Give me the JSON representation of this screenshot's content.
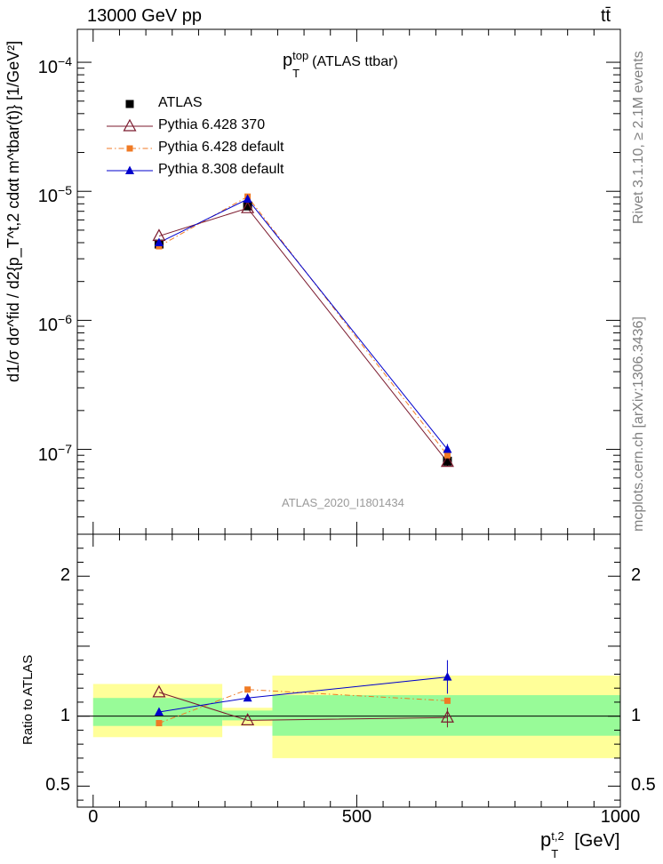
{
  "header": {
    "left": "13000 GeV pp",
    "right": "tt̄"
  },
  "side_labels": {
    "upper": "Rivet 3.1.10, ≥ 2.1M events",
    "lower": "mcplots.cern.ch [arXiv:1306.3436]"
  },
  "chart_data": [
    {
      "type": "scatter",
      "panel": "main",
      "title": "p_T^top (ATLAS ttbar)",
      "title_parts": {
        "p": "p",
        "sub": "T",
        "sup": "top",
        "rest": "(ATLAS ttbar)"
      },
      "watermark": "ATLAS_2020_I1801434",
      "ylabel": "d1/σ dσ^fid / d2{p_T^t,2 cdαt m^tbar(t)} [1/GeV²]",
      "yscale": "log",
      "ylim": [
        2.2e-08,
        0.00018
      ],
      "xlim": [
        -30,
        1000
      ],
      "y_ticks": [
        {
          "value": 1e-07,
          "label": "10",
          "exp": "−7"
        },
        {
          "value": 1e-06,
          "label": "10",
          "exp": "−6"
        },
        {
          "value": 1e-05,
          "label": "10",
          "exp": "−5"
        },
        {
          "value": 0.0001,
          "label": "10",
          "exp": "−4"
        }
      ],
      "legend_position": "top-left",
      "x": [
        125,
        293,
        672
      ],
      "series": [
        {
          "name": "ATLAS",
          "marker": "square",
          "color": "#000000",
          "values": [
            3.9e-06,
            7.7e-06,
            8.1e-08
          ],
          "errors": [
            2.5e-07,
            5e-07,
            7e-09
          ],
          "x_errors": [
            125,
            45,
            330
          ]
        },
        {
          "name": "Pythia 6.428 370",
          "marker": "open-triangle",
          "color": "#7b1a2e",
          "values": [
            4.5e-06,
            7.4e-06,
            8e-08
          ]
        },
        {
          "name": "Pythia 6.428 default",
          "marker": "small-square",
          "color": "#f07a24",
          "dash": "dashdot",
          "values": [
            3.75e-06,
            9.1e-06,
            9e-08
          ]
        },
        {
          "name": "Pythia 8.308 default",
          "marker": "filled-triangle",
          "color": "#0000cc",
          "values": [
            4e-06,
            8.7e-06,
            1e-07
          ],
          "errors": [
            0,
            0,
            1e-08
          ]
        }
      ]
    },
    {
      "type": "scatter",
      "panel": "ratio",
      "ylabel": "Ratio to ATLAS",
      "xlabel": "p_T^t,2 [GeV]",
      "xlabel_parts": {
        "p": "p",
        "sub": "T",
        "sup": "t,2",
        "rest": "[GeV]"
      },
      "xlim": [
        -30,
        1000
      ],
      "ylim": [
        0.35,
        2.3
      ],
      "x_ticks": [
        0,
        500,
        1000
      ],
      "y_ticks": [
        0.5,
        1,
        2
      ],
      "bands": [
        {
          "x": [
            0,
            245
          ],
          "inner": [
            0.93,
            1.13
          ],
          "outer": [
            0.85,
            1.23
          ]
        },
        {
          "x": [
            245,
            340
          ],
          "inner": [
            0.97,
            1.04
          ],
          "outer": [
            0.93,
            1.06
          ]
        },
        {
          "x": [
            340,
            1000
          ],
          "inner": [
            0.86,
            1.15
          ],
          "outer": [
            0.7,
            1.29
          ]
        }
      ],
      "x": [
        125,
        293,
        672
      ],
      "series": [
        {
          "name": "Pythia 6.428 370",
          "values": [
            1.17,
            0.97,
            0.99
          ],
          "errors": [
            0,
            0,
            0.07
          ]
        },
        {
          "name": "Pythia 6.428 default",
          "values": [
            0.95,
            1.19,
            1.11
          ]
        },
        {
          "name": "Pythia 8.308 default",
          "values": [
            1.03,
            1.13,
            1.28
          ],
          "errors": [
            0,
            0,
            0.12
          ]
        }
      ]
    }
  ]
}
